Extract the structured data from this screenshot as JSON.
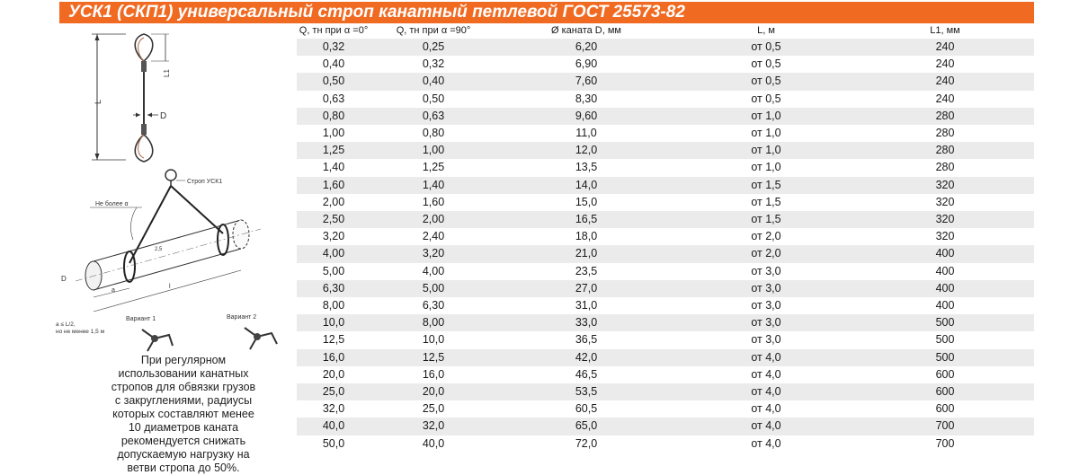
{
  "title": "УСК1 (СКП1) универсальный строп канатный петлевой ГОСТ 25573-82",
  "table": {
    "headers": [
      "Q, тн при α =0°",
      "Q, тн при α =90°",
      "Ø каната D, мм",
      "L, м",
      "L1, мм"
    ],
    "rows": [
      [
        "0,32",
        "0,25",
        "6,20",
        "от 0,5",
        "240"
      ],
      [
        "0,40",
        "0,32",
        "6,90",
        "от 0,5",
        "240"
      ],
      [
        "0,50",
        "0,40",
        "7,60",
        "от 0,5",
        "240"
      ],
      [
        "0,63",
        "0,50",
        "8,30",
        "от 0,5",
        "240"
      ],
      [
        "0,80",
        "0,63",
        "9,60",
        "от 1,0",
        "280"
      ],
      [
        "1,00",
        "0,80",
        "11,0",
        "от 1,0",
        "280"
      ],
      [
        "1,25",
        "1,00",
        "12,0",
        "от 1,0",
        "280"
      ],
      [
        "1,40",
        "1,25",
        "13,5",
        "от 1,0",
        "280"
      ],
      [
        "1,60",
        "1,40",
        "14,0",
        "от 1,5",
        "320"
      ],
      [
        "2,00",
        "1,60",
        "15,0",
        "от 1,5",
        "320"
      ],
      [
        "2,50",
        "2,00",
        "16,5",
        "от 1,5",
        "320"
      ],
      [
        "3,20",
        "2,40",
        "18,0",
        "от 2,0",
        "320"
      ],
      [
        "4,00",
        "3,20",
        "21,0",
        "от 2,0",
        "400"
      ],
      [
        "5,00",
        "4,00",
        "23,5",
        "от 3,0",
        "400"
      ],
      [
        "6,30",
        "5,00",
        "27,0",
        "от 3,0",
        "400"
      ],
      [
        "8,00",
        "6,30",
        "31,0",
        "от 3,0",
        "400"
      ],
      [
        "10,0",
        "8,00",
        "33,0",
        "от 3,0",
        "500"
      ],
      [
        "12,5",
        "10,0",
        "36,5",
        "от 3,0",
        "500"
      ],
      [
        "16,0",
        "12,5",
        "42,0",
        "от 4,0",
        "500"
      ],
      [
        "20,0",
        "16,0",
        "46,5",
        "от 4,0",
        "600"
      ],
      [
        "25,0",
        "20,0",
        "53,5",
        "от 4,0",
        "600"
      ],
      [
        "32,0",
        "25,0",
        "60,5",
        "от 4,0",
        "600"
      ],
      [
        "40,0",
        "32,0",
        "65,0",
        "от 4,0",
        "700"
      ],
      [
        "50,0",
        "40,0",
        "72,0",
        "от 4,0",
        "700"
      ]
    ]
  },
  "diagram_top": {
    "label_L": "L",
    "label_L1": "L1",
    "label_D": "D"
  },
  "diagram_main": {
    "label_sling": "Строп УСК1",
    "label_angle": "Не более α",
    "label_variant1": "Вариант 1",
    "label_variant2": "Вариант 2",
    "label_a": "a ≤ L/2,",
    "label_a2": "но не менее 1,5 м",
    "label_D": "D",
    "label_l": "l",
    "label_a_dim": "a",
    "label_25": "2,5"
  },
  "note": "При регулярном\nиспользовании канатных\nстропов для обвязки грузов\nс закруглениями, радиусы\nкоторых составляют менее\n10 диаметров каната\nрекомендуется снижать\nдопускаемую  нагрузку на\nветви стропа до 50%.",
  "colors": {
    "title_bg": "#f06a22",
    "row_shade": "#ebebeb",
    "sling_loop": "#b06a4a"
  }
}
